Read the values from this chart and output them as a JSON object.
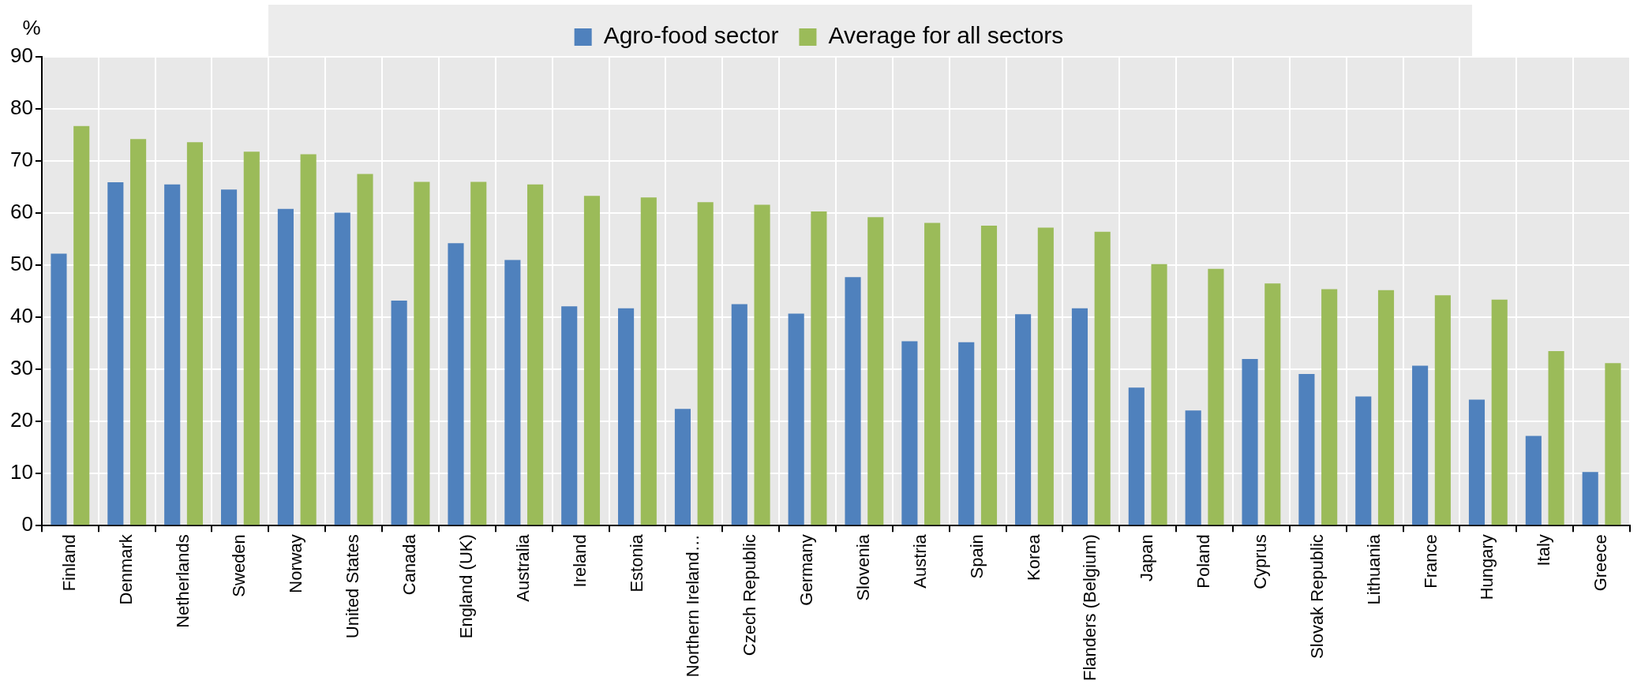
{
  "chart_data": {
    "type": "bar",
    "ylabel": "%",
    "categories": [
      "Finland",
      "Denmark",
      "Netherlands",
      "Sweden",
      "Norway",
      "United States",
      "Canada",
      "England (UK)",
      "Australia",
      "Ireland",
      "Estonia",
      "Northern Ireland…",
      "Czech Republic",
      "Germany",
      "Slovenia",
      "Austria",
      "Spain",
      "Korea",
      "Flanders (Belgium)",
      "Japan",
      "Poland",
      "Cyprus",
      "Slovak Republic",
      "Lithuania",
      "France",
      "Hungary",
      "Italy",
      "Greece"
    ],
    "series": [
      {
        "name": "Agro-food sector",
        "color": "#4f81bd",
        "values": [
          52.2,
          65.9,
          65.5,
          64.5,
          60.8,
          60.1,
          43.2,
          54.2,
          51.0,
          42.1,
          41.7,
          22.4,
          42.5,
          40.7,
          47.7,
          35.4,
          35.2,
          40.6,
          41.7,
          26.5,
          22.1,
          32.0,
          29.1,
          24.8,
          30.7,
          24.2,
          17.2,
          10.3
        ]
      },
      {
        "name": "Average for all sectors",
        "color": "#9bbb59",
        "values": [
          76.7,
          74.2,
          73.6,
          71.8,
          71.3,
          67.5,
          66.0,
          66.0,
          65.5,
          63.3,
          63.0,
          62.1,
          61.6,
          60.3,
          59.2,
          58.1,
          57.6,
          57.2,
          56.4,
          50.2,
          49.3,
          46.5,
          45.4,
          45.2,
          44.2,
          43.4,
          33.5,
          31.2
        ]
      }
    ],
    "ylim": [
      0,
      90
    ],
    "yticks": [
      0,
      10,
      20,
      30,
      40,
      50,
      60,
      70,
      80,
      90
    ],
    "grid": true,
    "legend": "top"
  }
}
